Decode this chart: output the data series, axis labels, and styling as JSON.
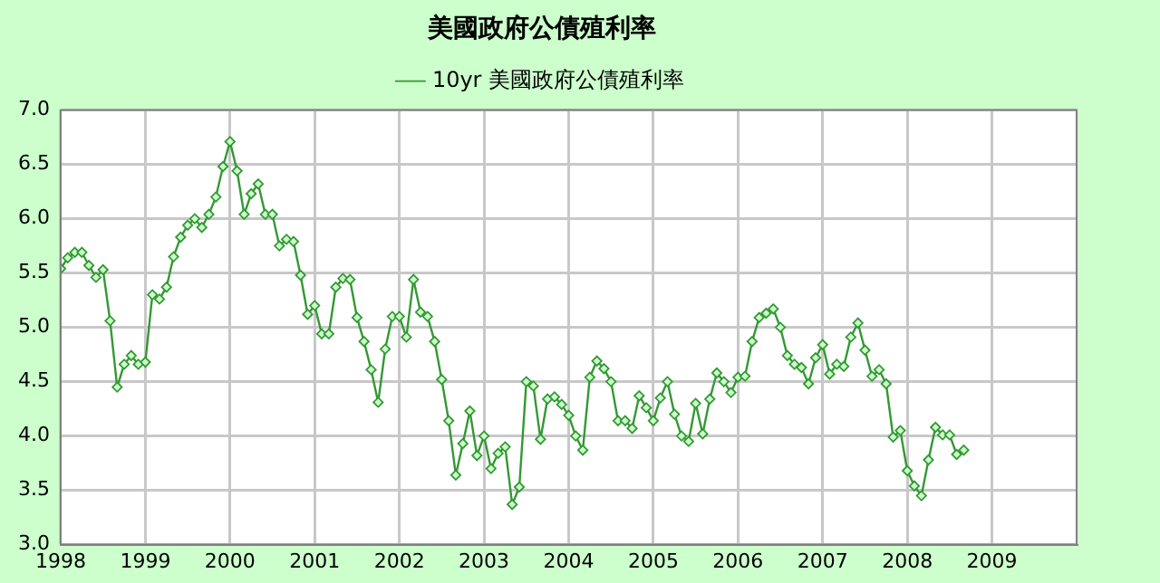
{
  "chart_data": {
    "type": "line",
    "title": "美國政府公債殖利率",
    "x": [
      1998,
      1998.083,
      1998.167,
      1998.25,
      1998.333,
      1998.417,
      1998.5,
      1998.583,
      1998.667,
      1998.75,
      1998.833,
      1998.917,
      1999,
      1999.083,
      1999.167,
      1999.25,
      1999.333,
      1999.417,
      1999.5,
      1999.583,
      1999.667,
      1999.75,
      1999.833,
      1999.917,
      2000,
      2000.083,
      2000.167,
      2000.25,
      2000.333,
      2000.417,
      2000.5,
      2000.583,
      2000.667,
      2000.75,
      2000.833,
      2000.917,
      2001,
      2001.083,
      2001.167,
      2001.25,
      2001.333,
      2001.417,
      2001.5,
      2001.583,
      2001.667,
      2001.75,
      2001.833,
      2001.917,
      2002,
      2002.083,
      2002.167,
      2002.25,
      2002.333,
      2002.417,
      2002.5,
      2002.583,
      2002.667,
      2002.75,
      2002.833,
      2002.917,
      2003,
      2003.083,
      2003.167,
      2003.25,
      2003.333,
      2003.417,
      2003.5,
      2003.583,
      2003.667,
      2003.75,
      2003.833,
      2003.917,
      2004,
      2004.083,
      2004.167,
      2004.25,
      2004.333,
      2004.417,
      2004.5,
      2004.583,
      2004.667,
      2004.75,
      2004.833,
      2004.917,
      2005,
      2005.083,
      2005.167,
      2005.25,
      2005.333,
      2005.417,
      2005.5,
      2005.583,
      2005.667,
      2005.75,
      2005.833,
      2005.917,
      2006,
      2006.083,
      2006.167,
      2006.25,
      2006.333,
      2006.417,
      2006.5,
      2006.583,
      2006.667,
      2006.75,
      2006.833,
      2006.917,
      2007,
      2007.083,
      2007.167,
      2007.25,
      2007.333,
      2007.417,
      2007.5,
      2007.583,
      2007.667,
      2007.75,
      2007.833,
      2007.917,
      2008,
      2008.083,
      2008.167,
      2008.25,
      2008.333,
      2008.417,
      2008.5,
      2008.583,
      2008.667
    ],
    "series": [
      {
        "name": "10yr 美國政府公債殖利率",
        "color": "#339933",
        "values": [
          5.54,
          5.64,
          5.69,
          5.69,
          5.57,
          5.46,
          5.53,
          5.06,
          4.45,
          4.66,
          4.74,
          4.66,
          4.68,
          5.3,
          5.26,
          5.37,
          5.65,
          5.83,
          5.94,
          6.0,
          5.92,
          6.04,
          6.2,
          6.48,
          6.71,
          6.44,
          6.04,
          6.23,
          6.32,
          6.04,
          6.04,
          5.75,
          5.81,
          5.79,
          5.48,
          5.12,
          5.2,
          4.94,
          4.94,
          5.37,
          5.45,
          5.44,
          5.09,
          4.87,
          4.61,
          4.31,
          4.8,
          5.1,
          5.1,
          4.91,
          5.44,
          5.14,
          5.1,
          4.87,
          4.52,
          4.14,
          3.64,
          3.93,
          4.23,
          3.82,
          4.0,
          3.7,
          3.84,
          3.9,
          3.37,
          3.53,
          4.5,
          4.46,
          3.97,
          4.34,
          4.36,
          4.29,
          4.19,
          4.0,
          3.87,
          4.54,
          4.69,
          4.62,
          4.5,
          4.14,
          4.14,
          4.07,
          4.37,
          4.26,
          4.14,
          4.35,
          4.5,
          4.2,
          4.0,
          3.95,
          4.3,
          4.02,
          4.34,
          4.58,
          4.5,
          4.4,
          4.54,
          4.55,
          4.87,
          5.09,
          5.13,
          5.17,
          5.0,
          4.74,
          4.66,
          4.63,
          4.48,
          4.72,
          4.84,
          4.57,
          4.66,
          4.64,
          4.91,
          5.04,
          4.79,
          4.55,
          4.61,
          4.48,
          3.99,
          4.05,
          3.68,
          3.54,
          3.45,
          3.78,
          4.08,
          4.01,
          4.01,
          3.83,
          3.87
        ]
      }
    ],
    "xlim": [
      1998,
      2010
    ],
    "xticks": [
      1998,
      1999,
      2000,
      2001,
      2002,
      2003,
      2004,
      2005,
      2006,
      2007,
      2008,
      2009
    ],
    "ylim": [
      3,
      7
    ],
    "yticks": [
      {
        "value": 3,
        "label": "3.0"
      },
      3.5,
      {
        "value": 4,
        "label": "4.0"
      },
      4.5,
      {
        "value": 5,
        "label": "5.0"
      },
      5.5,
      {
        "value": 6,
        "label": "6.0"
      },
      6.5,
      {
        "value": 7,
        "label": "7.0"
      }
    ],
    "grid": true,
    "legend": "top",
    "marker": "diamond",
    "line_style": "solid"
  }
}
